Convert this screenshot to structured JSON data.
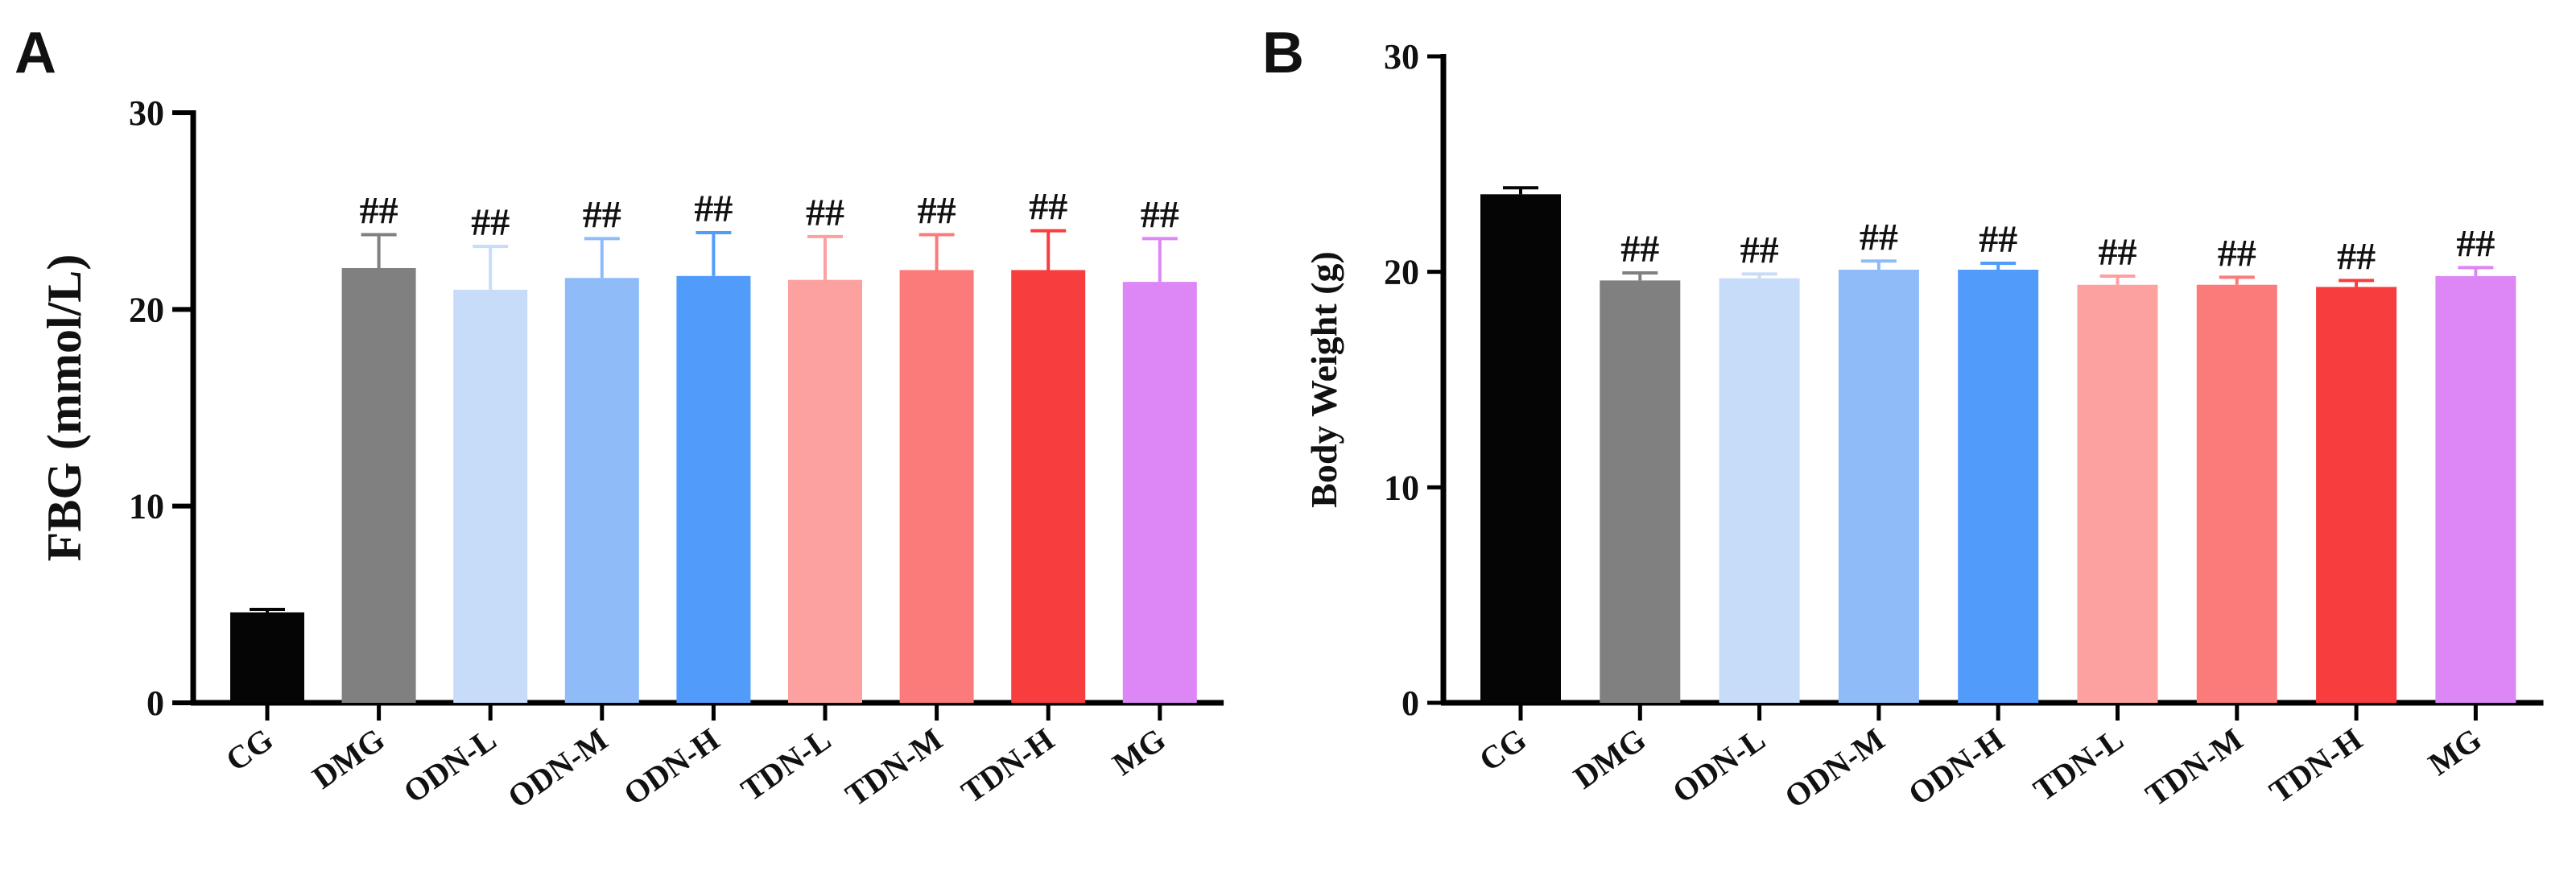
{
  "panels": [
    {
      "letter": "A"
    },
    {
      "letter": "B"
    }
  ],
  "colors": {
    "CG": "#050505",
    "DMG": "#808080",
    "ODN-L": "#c6dcf8",
    "ODN-M": "#8fbcf9",
    "ODN-H": "#519cfb",
    "TDN-L": "#fca0a0",
    "TDN-M": "#fb7b7b",
    "TDN-H": "#f83d3f",
    "MG": "#dd86f5"
  },
  "chart_data": [
    {
      "type": "bar",
      "title": "",
      "xlabel": "",
      "ylabel": "FBG (mmol/L)",
      "ylim": [
        0,
        30
      ],
      "yticks": [
        "0",
        "10",
        "20",
        "30"
      ],
      "categories": [
        "CG",
        "DMG",
        "ODN-L",
        "ODN-M",
        "ODN-H",
        "TDN-L",
        "TDN-M",
        "TDN-H",
        "MG"
      ],
      "values": [
        4.6,
        22.1,
        21.0,
        21.6,
        21.7,
        21.5,
        22.0,
        22.0,
        21.4
      ],
      "errors": [
        0.15,
        1.7,
        2.2,
        2.0,
        2.2,
        2.2,
        1.8,
        2.0,
        2.2
      ],
      "annotations": [
        "",
        "##",
        "##",
        "##",
        "##",
        "##",
        "##",
        "##",
        "##"
      ],
      "grid": false,
      "legend": "none"
    },
    {
      "type": "bar",
      "title": "",
      "xlabel": "",
      "ylabel": "Body Weight (g)",
      "ylim": [
        0,
        30
      ],
      "yticks": [
        "0",
        "10",
        "20",
        "30"
      ],
      "categories": [
        "CG",
        "DMG",
        "ODN-L",
        "ODN-M",
        "ODN-H",
        "TDN-L",
        "TDN-M",
        "TDN-H",
        "MG"
      ],
      "values": [
        23.6,
        19.6,
        19.7,
        20.1,
        20.1,
        19.4,
        19.4,
        19.3,
        19.8
      ],
      "errors": [
        0.3,
        0.35,
        0.2,
        0.4,
        0.3,
        0.4,
        0.35,
        0.3,
        0.4
      ],
      "annotations": [
        "",
        "##",
        "##",
        "##",
        "##",
        "##",
        "##",
        "##",
        "##"
      ],
      "grid": false,
      "legend": "none"
    }
  ]
}
